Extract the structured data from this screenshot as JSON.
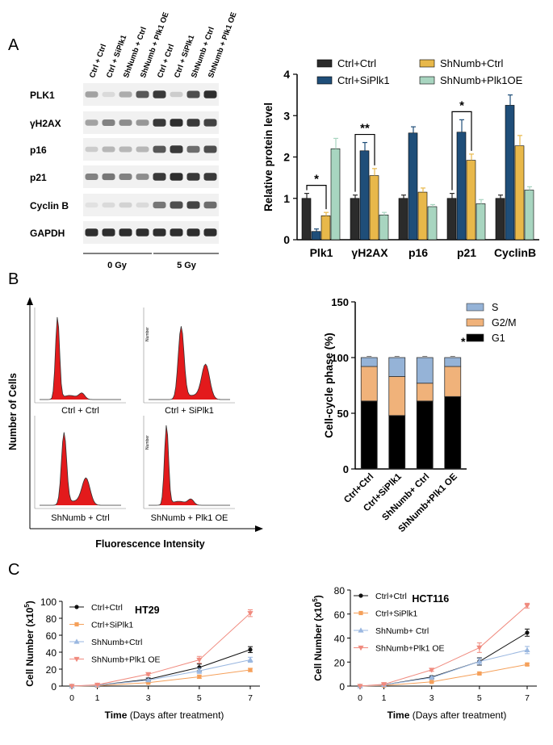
{
  "figure": {
    "panel_labels": [
      "A",
      "B",
      "C"
    ]
  },
  "western_blot": {
    "lanes": [
      "Ctrl + Ctrl",
      "Ctrl + SiPlk1",
      "ShNumb + Ctrl",
      "ShNumb + Plk1 OE",
      "Ctrl + Ctrl",
      "Ctrl + SiPlk1",
      "ShNumb + Ctrl",
      "ShNumb + Plk1 OE"
    ],
    "dose_groups": [
      "0 Gy",
      "5 Gy"
    ],
    "rows": [
      {
        "label": "PLK1",
        "intensity": [
          0.35,
          0.08,
          0.3,
          0.7,
          0.85,
          0.15,
          0.75,
          0.9
        ]
      },
      {
        "label": "γH2AX",
        "intensity": [
          0.35,
          0.5,
          0.45,
          0.4,
          0.85,
          0.9,
          0.85,
          0.8
        ]
      },
      {
        "label": "p16",
        "intensity": [
          0.15,
          0.25,
          0.25,
          0.25,
          0.7,
          0.85,
          0.6,
          0.75
        ]
      },
      {
        "label": "p21",
        "intensity": [
          0.5,
          0.55,
          0.5,
          0.45,
          0.85,
          0.9,
          0.85,
          0.85
        ]
      },
      {
        "label": "Cyclin B",
        "intensity": [
          0.05,
          0.08,
          0.12,
          0.08,
          0.55,
          0.75,
          0.8,
          0.6
        ]
      },
      {
        "label": "GAPDH",
        "intensity": [
          0.9,
          0.9,
          0.9,
          0.9,
          0.9,
          0.9,
          0.9,
          0.9
        ]
      }
    ]
  },
  "flow_cytometry": {
    "panels": [
      "Ctrl + Ctrl",
      "Ctrl + SiPlk1",
      "ShNumb + Ctrl",
      "ShNumb + Plk1 OE"
    ],
    "axis_tag": "Number",
    "y_label": "Number of Cells",
    "x_label": "Fluorescence Intensity"
  },
  "colors": {
    "ctrl_ctrl": "#2b2b2b",
    "ctrl_siplk1": "#1f4e79",
    "shnumb_ctrl": "#e8b84a",
    "shnumb_plk1oe": "#a8d5c0",
    "phase_s": "#95b3d7",
    "phase_g2m": "#f0b27a",
    "phase_g1": "#000000",
    "peak": "#e31a1c"
  },
  "chart_data": [
    {
      "id": "protein",
      "type": "bar",
      "ylabel": "Relative protein level",
      "ylim": [
        0,
        4
      ],
      "yticks": [
        0,
        1,
        2,
        3,
        4
      ],
      "categories": [
        "Plk1",
        "γH2AX",
        "p16",
        "p21",
        "CyclinB"
      ],
      "series": [
        {
          "name": "Ctrl+Ctrl",
          "values": [
            1.0,
            1.0,
            1.0,
            1.0,
            1.0
          ],
          "errors": [
            0.12,
            0.08,
            0.08,
            0.12,
            0.08
          ]
        },
        {
          "name": "Ctrl+SiPlk1",
          "values": [
            0.2,
            2.15,
            2.58,
            2.6,
            3.25
          ],
          "errors": [
            0.06,
            0.2,
            0.15,
            0.3,
            0.25
          ]
        },
        {
          "name": "ShNumb+Ctrl",
          "values": [
            0.58,
            1.55,
            1.15,
            1.92,
            2.27
          ],
          "errors": [
            0.08,
            0.17,
            0.1,
            0.15,
            0.25
          ]
        },
        {
          "name": "ShNumb+Plk1OE",
          "values": [
            2.2,
            0.6,
            0.8,
            0.87,
            1.2
          ],
          "errors": [
            0.25,
            0.06,
            0.05,
            0.1,
            0.08
          ]
        }
      ],
      "significance": [
        {
          "category": "Plk1",
          "mark": "*"
        },
        {
          "category": "γH2AX",
          "mark": "**"
        },
        {
          "category": "p21",
          "mark": "*"
        }
      ]
    },
    {
      "id": "cellcycle",
      "type": "bar",
      "stacked": true,
      "ylabel": "Cell-cycle phase (%)",
      "ylim": [
        0,
        150
      ],
      "yticks": [
        0,
        50,
        100,
        150
      ],
      "categories": [
        "Ctrl+Ctrl",
        "Ctrl+SiPlk1",
        "ShNumb+ Ctrl",
        "ShNumb+Plk1 OE"
      ],
      "series": [
        {
          "name": "G1",
          "values": [
            61,
            48,
            61,
            65
          ]
        },
        {
          "name": "G2/M",
          "values": [
            31,
            35,
            16,
            27
          ]
        },
        {
          "name": "S",
          "values": [
            8,
            17,
            23,
            8
          ]
        }
      ],
      "legend_order": [
        "S",
        "G2/M",
        "G1"
      ],
      "annotation": "*"
    },
    {
      "id": "ht29",
      "type": "line",
      "title": "HT29",
      "xlabel": "Time",
      "xlabel_note": "(Days after treatment)",
      "ylabel": "Cell Number",
      "ylabel_unit": "(x10",
      "ylabel_exp": "5",
      "ylim": [
        0,
        100
      ],
      "yticks": [
        0,
        20,
        40,
        60,
        80,
        100
      ],
      "x": [
        0,
        1,
        3,
        5,
        7
      ],
      "series": [
        {
          "name": "Ctrl+Ctrl",
          "values": [
            0,
            1,
            8,
            22,
            43
          ],
          "errors": [
            0,
            0.5,
            1.5,
            4,
            3.5
          ]
        },
        {
          "name": "Ctrl+SiPlk1",
          "values": [
            0,
            0.5,
            4,
            11,
            19
          ],
          "errors": [
            0,
            0.3,
            0.8,
            2,
            2
          ]
        },
        {
          "name": "ShNumb+Ctrl",
          "values": [
            0,
            1,
            7,
            18,
            31
          ],
          "errors": [
            0,
            0.4,
            1.2,
            3,
            3
          ]
        },
        {
          "name": "ShNumb+Plk1 OE",
          "values": [
            0,
            1.5,
            14,
            31,
            86
          ],
          "errors": [
            0,
            0.5,
            1.5,
            4,
            4
          ]
        }
      ]
    },
    {
      "id": "hct116",
      "type": "line",
      "title": "HCT116",
      "xlabel": "Time",
      "xlabel_note": "(Days after treatment)",
      "ylabel": "Cell Number",
      "ylabel_unit": "(x10",
      "ylabel_exp": "5",
      "ylim": [
        0,
        80
      ],
      "yticks": [
        0,
        20,
        40,
        60,
        80
      ],
      "x": [
        0,
        1,
        3,
        5,
        7
      ],
      "series": [
        {
          "name": "Ctrl+Ctrl",
          "values": [
            0,
            1,
            7.5,
            20.5,
            44.5
          ],
          "errors": [
            0,
            0.5,
            1,
            3,
            3
          ]
        },
        {
          "name": "Ctrl+SiPlk1",
          "values": [
            0,
            0.5,
            3.5,
            10.5,
            18
          ],
          "errors": [
            0,
            0.3,
            0.6,
            1,
            1
          ]
        },
        {
          "name": "ShNumb+ Ctrl",
          "values": [
            0,
            1,
            7,
            20.5,
            30
          ],
          "errors": [
            0,
            0.4,
            1,
            2.5,
            3
          ]
        },
        {
          "name": "ShNumb+Plk1 OE",
          "values": [
            0,
            1.5,
            13.5,
            32,
            67
          ],
          "errors": [
            0,
            0.5,
            1.2,
            4,
            2
          ]
        }
      ]
    }
  ]
}
